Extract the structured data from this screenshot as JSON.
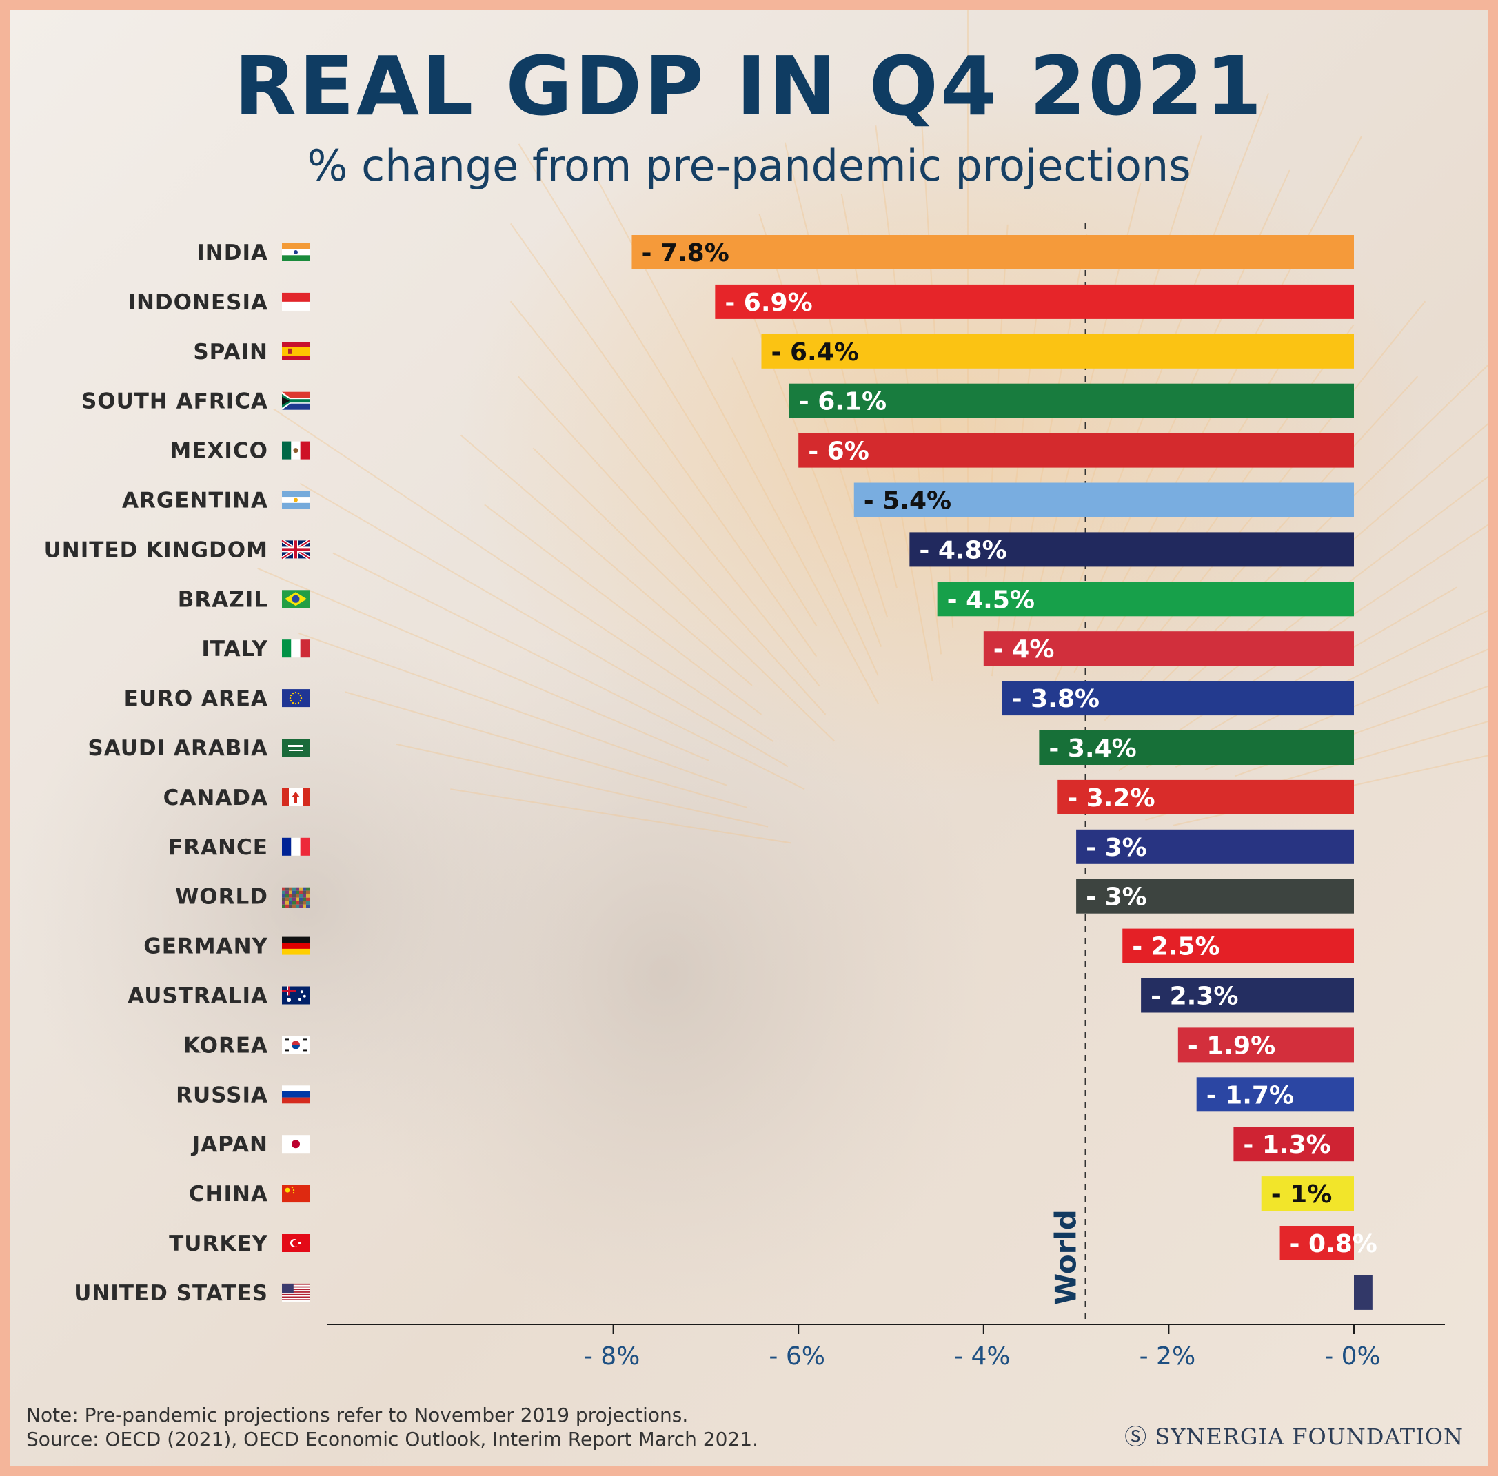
{
  "title": "REAL GDP IN Q4 2021",
  "subtitle": "% change from pre-pandemic projections",
  "note": "Note: Pre-pandemic projections refer to November 2019 projections.",
  "source": "Source: OECD (2021), OECD Economic Outlook, Interim Report March 2021.",
  "brand": "Ⓢ SYNERGIA FOUNDATION",
  "chart_data": {
    "type": "bar",
    "orientation": "horizontal",
    "categories": [
      "INDIA",
      "INDONESIA",
      "SPAIN",
      "SOUTH AFRICA",
      "MEXICO",
      "ARGENTINA",
      "UNITED KINGDOM",
      "BRAZIL",
      "ITALY",
      "EURO AREA",
      "SAUDI ARABIA",
      "CANADA",
      "FRANCE",
      "WORLD",
      "GERMANY",
      "AUSTRALIA",
      "KOREA",
      "RUSSIA",
      "JAPAN",
      "CHINA",
      "TURKEY",
      "UNITED STATES"
    ],
    "values": [
      -7.8,
      -6.9,
      -6.4,
      -6.1,
      -6,
      -5.4,
      -4.8,
      -4.5,
      -4,
      -3.8,
      -3.4,
      -3.2,
      -3,
      -3,
      -2.5,
      -2.3,
      -1.9,
      -1.7,
      -1.3,
      -1,
      -0.8,
      0.2
    ],
    "data_labels": [
      "- 7.8%",
      "- 6.9%",
      "- 6.4%",
      "- 6.1%",
      "- 6%",
      "- 5.4%",
      "- 4.8%",
      "- 4.5%",
      "- 4%",
      "- 3.8%",
      "- 3.4%",
      "- 3.2%",
      "- 3%",
      "- 3%",
      "- 2.5%",
      "- 2.3%",
      "- 1.9%",
      "- 1.7%",
      "- 1.3%",
      "- 1%",
      "- 0.8%",
      ""
    ],
    "bar_colors": [
      "#f59a3a",
      "#e62529",
      "#fbc313",
      "#187c3e",
      "#d42a2d",
      "#79ade0",
      "#21295e",
      "#17a04a",
      "#d12f3c",
      "#233a8e",
      "#177038",
      "#d92c2a",
      "#283482",
      "#3d4440",
      "#e42026",
      "#242e61",
      "#d32f3c",
      "#2b46a3",
      "#cf2333",
      "#f2e52a",
      "#e4262a",
      "#323868"
    ],
    "label_colors": [
      "#111111",
      "#ffffff",
      "#111111",
      "#ffffff",
      "#ffffff",
      "#111111",
      "#ffffff",
      "#ffffff",
      "#ffffff",
      "#ffffff",
      "#ffffff",
      "#ffffff",
      "#ffffff",
      "#ffffff",
      "#ffffff",
      "#ffffff",
      "#ffffff",
      "#ffffff",
      "#ffffff",
      "#111111",
      "#ffffff",
      "#ffffff"
    ],
    "flags": [
      "india-flag-icon",
      "indonesia-flag-icon",
      "spain-flag-icon",
      "south-africa-flag-icon",
      "mexico-flag-icon",
      "argentina-flag-icon",
      "united-kingdom-flag-icon",
      "brazil-flag-icon",
      "italy-flag-icon",
      "euro-area-flag-icon",
      "saudi-arabia-flag-icon",
      "canada-flag-icon",
      "france-flag-icon",
      "world-flag-icon",
      "germany-flag-icon",
      "australia-flag-icon",
      "korea-flag-icon",
      "russia-flag-icon",
      "japan-flag-icon",
      "china-flag-icon",
      "turkey-flag-icon",
      "united-states-flag-icon"
    ],
    "x_ticks": [
      -8,
      -6,
      -4,
      -2,
      0
    ],
    "x_tick_labels": [
      "- 8%",
      "- 6%",
      "- 4%",
      "- 2%",
      "- 0%"
    ],
    "xlim": [
      -8.1,
      0.7
    ],
    "reference_line": {
      "value": -2.9,
      "label": "World",
      "style": "dashed"
    },
    "grid": false
  }
}
